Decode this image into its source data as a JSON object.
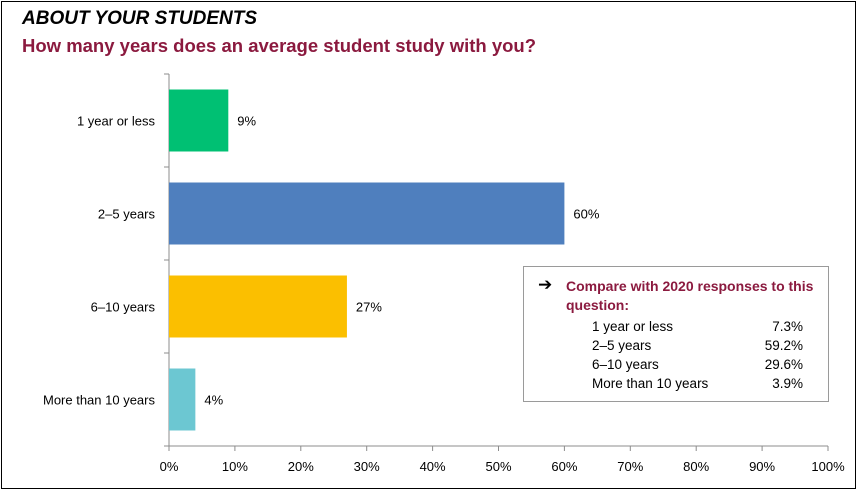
{
  "header": {
    "section_title": "ABOUT YOUR STUDENTS",
    "question": "How many years does an average student study with you?"
  },
  "chart_data": {
    "type": "bar",
    "orientation": "horizontal",
    "categories": [
      "1 year or less",
      "2–5 years",
      "6–10 years",
      "More than 10 years"
    ],
    "values": [
      9,
      60,
      27,
      4
    ],
    "value_labels": [
      "9%",
      "60%",
      "27%",
      "4%"
    ],
    "colors": [
      "#00c073",
      "#4f7fbe",
      "#fbbf00",
      "#6cc7d2"
    ],
    "xlim": [
      0,
      100
    ],
    "x_ticks": [
      "0%",
      "10%",
      "20%",
      "30%",
      "40%",
      "50%",
      "60%",
      "70%",
      "80%",
      "90%",
      "100%"
    ],
    "grid": false,
    "legend": false
  },
  "compare": {
    "title": "Compare with 2020 responses to this question:",
    "rows": [
      {
        "label": "1 year or less",
        "value": "7.3%"
      },
      {
        "label": "2–5 years",
        "value": "59.2%"
      },
      {
        "label": "6–10 years",
        "value": "29.6%"
      },
      {
        "label": "More than 10 years",
        "value": "3.9%"
      }
    ]
  }
}
